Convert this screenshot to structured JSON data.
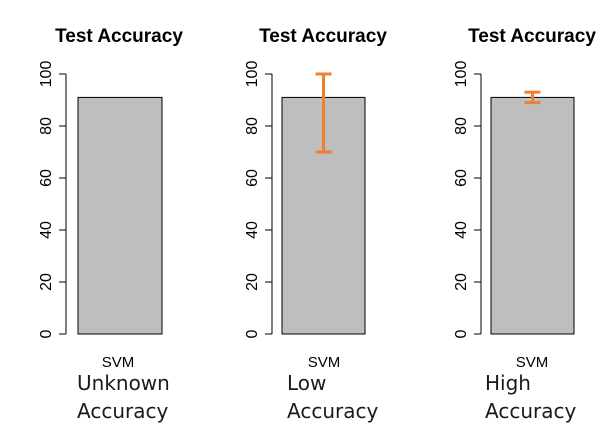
{
  "colors": {
    "bar_fill": "#bebebe",
    "bar_stroke": "#000000",
    "error_bar": "#f08030",
    "axis": "#000000",
    "background": "#ffffff"
  },
  "chart_data": [
    {
      "type": "bar",
      "title": "Test Accuracy",
      "categories": [
        "SVM"
      ],
      "values": [
        91
      ],
      "error": null,
      "ylim": [
        0,
        100
      ],
      "yticks": [
        0,
        20,
        40,
        60,
        80,
        100
      ],
      "grid": false,
      "caption": [
        "Unknown",
        "Accuracy"
      ]
    },
    {
      "type": "bar",
      "title": "Test Accuracy",
      "categories": [
        "SVM"
      ],
      "values": [
        91
      ],
      "error": {
        "low": 70,
        "high": 100
      },
      "ylim": [
        0,
        100
      ],
      "yticks": [
        0,
        20,
        40,
        60,
        80,
        100
      ],
      "grid": false,
      "caption": [
        "Low",
        "Accuracy"
      ]
    },
    {
      "type": "bar",
      "title": "Test Accuracy",
      "categories": [
        "SVM"
      ],
      "values": [
        91
      ],
      "error": {
        "low": 89,
        "high": 93
      },
      "ylim": [
        0,
        100
      ],
      "yticks": [
        0,
        20,
        40,
        60,
        80,
        100
      ],
      "grid": false,
      "caption": [
        "High",
        "Accuracy"
      ]
    }
  ]
}
